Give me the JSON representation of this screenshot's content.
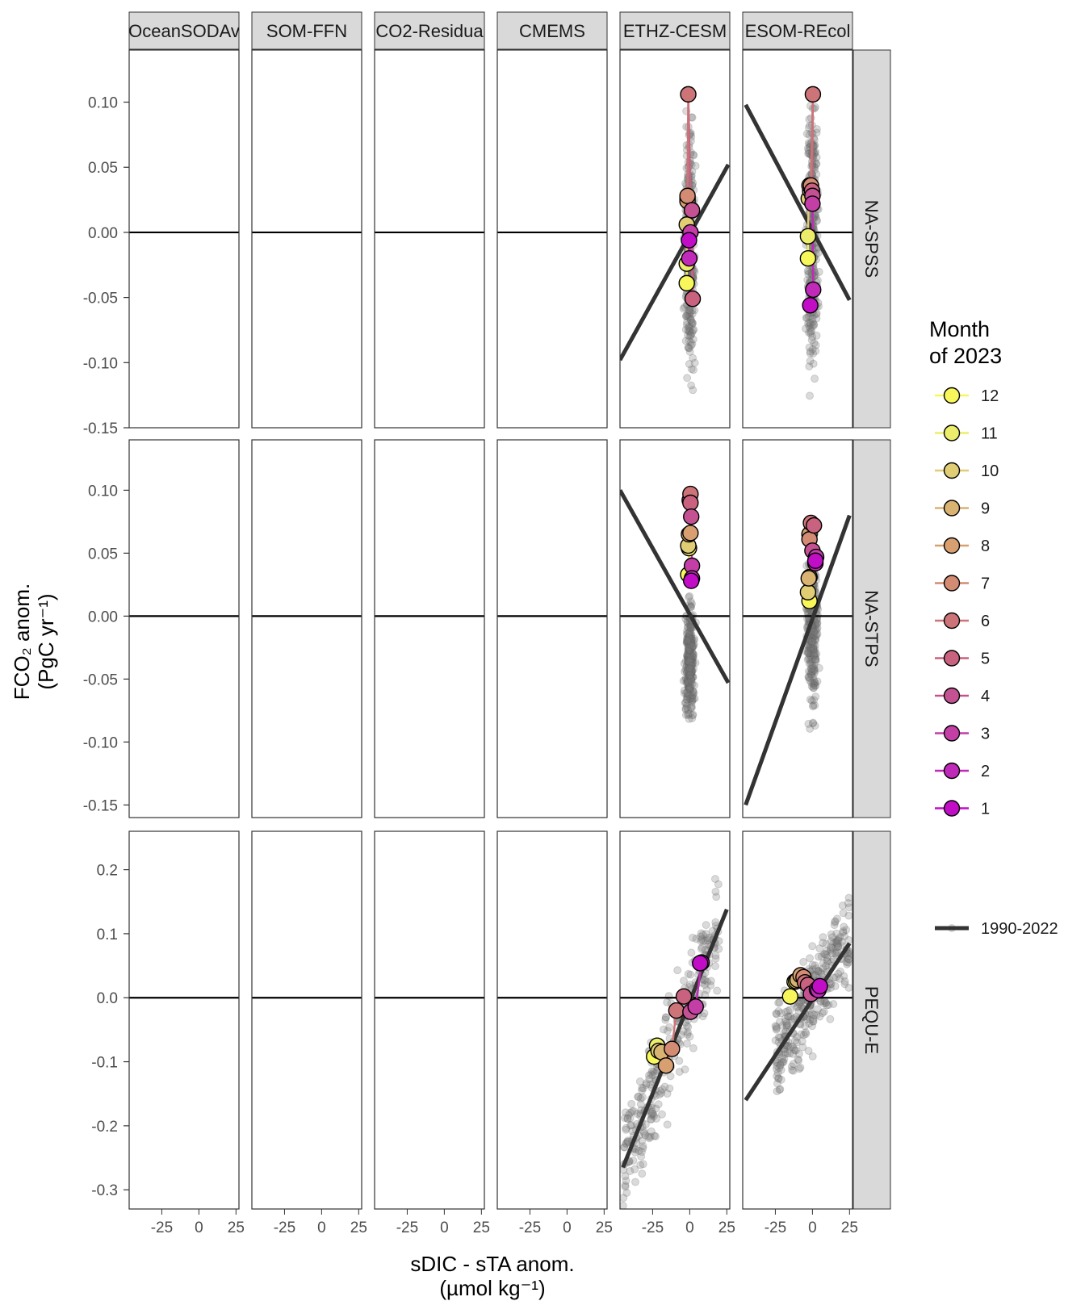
{
  "chart_data": {
    "type": "scatter",
    "facet_cols": [
      "OceanSODAv",
      "SOM-FFN",
      "CO2-Residua",
      "CMEMS",
      "ETHZ-CESM",
      "ESOM-REcol"
    ],
    "facet_rows": [
      "NA-SPSS",
      "NA-STPS",
      "PEQU-E"
    ],
    "xlabel": "sDIC - sTA anom.",
    "xlabel_unit": "(µmol kg⁻¹)",
    "ylabel": "FCO₂ anom.",
    "ylabel_unit": "(PgC yr⁻¹)",
    "x_ticks": [
      "-25",
      "0",
      "25"
    ],
    "xlim": [
      -47,
      27
    ],
    "rows_y": [
      {
        "ylim": [
          -0.15,
          0.14
        ],
        "ticks": [
          0.1,
          0.05,
          0.0,
          -0.05,
          -0.1,
          -0.15
        ],
        "tick_labels": [
          "0.10",
          "0.05",
          "0.00",
          "-0.05",
          "-0.10",
          "-0.15"
        ]
      },
      {
        "ylim": [
          -0.16,
          0.14
        ],
        "ticks": [
          0.1,
          0.05,
          0.0,
          -0.05,
          -0.1,
          -0.15
        ],
        "tick_labels": [
          "0.10",
          "0.05",
          "0.00",
          "-0.05",
          "-0.10",
          "-0.15"
        ]
      },
      {
        "ylim": [
          -0.33,
          0.26
        ],
        "ticks": [
          0.2,
          0.1,
          0.0,
          -0.1,
          -0.2,
          -0.3
        ],
        "tick_labels": [
          "0.2",
          "0.1",
          "0.0",
          "-0.1",
          "-0.2",
          "-0.3"
        ]
      }
    ],
    "zero_line": 0,
    "legend": {
      "title_line1": "Month",
      "title_line2": "of 2023",
      "months": [
        "12",
        "11",
        "10",
        "9",
        "8",
        "7",
        "6",
        "5",
        "4",
        "3",
        "2",
        "1"
      ],
      "month_colors": [
        "#f7f75c",
        "#eded6c",
        "#e0cd74",
        "#d9b371",
        "#d8a070",
        "#d38b73",
        "#cc7477",
        "#c9627f",
        "#c45292",
        "#c33fa6",
        "#c02ab8",
        "#c10ec6"
      ],
      "line_label": "1990-2022",
      "placement": "right"
    },
    "month_colors_by_month": [
      "#c10ec6",
      "#c02ab8",
      "#c33fa6",
      "#c45292",
      "#c9627f",
      "#cc7477",
      "#d38b73",
      "#d8a070",
      "#d9b371",
      "#e0cd74",
      "#eded6c",
      "#f7f75c"
    ],
    "panels": [
      {
        "row": 0,
        "col": 4,
        "fit_line": {
          "x": [
            -47,
            26
          ],
          "y": [
            -0.098,
            0.052
          ]
        },
        "background_cloud": {
          "x_center": 0,
          "x_spread": 1.6,
          "y_range": [
            -0.125,
            0.095
          ]
        },
        "month_points": [
          {
            "month": 1,
            "x": -0.5,
            "y": -0.006
          },
          {
            "month": 2,
            "x": -0.3,
            "y": -0.02
          },
          {
            "month": 3,
            "x": 0.5,
            "y": 0.0
          },
          {
            "month": 4,
            "x": 1.5,
            "y": 0.017
          },
          {
            "month": 5,
            "x": 2.0,
            "y": -0.051
          },
          {
            "month": 6,
            "x": -1.0,
            "y": 0.106
          },
          {
            "month": 7,
            "x": -1.5,
            "y": 0.028
          },
          {
            "month": 8,
            "x": -1.5,
            "y": 0.024
          },
          {
            "month": 9,
            "x": -1.5,
            "y": 0.026
          },
          {
            "month": 10,
            "x": -2.0,
            "y": 0.006
          },
          {
            "month": 11,
            "x": -2.0,
            "y": -0.024
          },
          {
            "month": 12,
            "x": -2.0,
            "y": -0.039
          }
        ]
      },
      {
        "row": 0,
        "col": 5,
        "fit_line": {
          "x": [
            -45,
            25
          ],
          "y": [
            0.098,
            -0.052
          ]
        },
        "background_cloud": {
          "x_center": 0,
          "x_spread": 1.8,
          "y_range": [
            -0.14,
            0.13
          ]
        },
        "month_points": [
          {
            "month": 1,
            "x": -1.5,
            "y": -0.056
          },
          {
            "month": 2,
            "x": 0.5,
            "y": -0.044
          },
          {
            "month": 3,
            "x": 0.0,
            "y": 0.022
          },
          {
            "month": 4,
            "x": 0.0,
            "y": 0.028
          },
          {
            "month": 5,
            "x": -0.3,
            "y": 0.032
          },
          {
            "month": 6,
            "x": 0.3,
            "y": 0.106
          },
          {
            "month": 7,
            "x": -1.0,
            "y": 0.036
          },
          {
            "month": 8,
            "x": -2.0,
            "y": 0.036
          },
          {
            "month": 9,
            "x": -1.5,
            "y": 0.032
          },
          {
            "month": 10,
            "x": -2.5,
            "y": 0.026
          },
          {
            "month": 11,
            "x": -3.0,
            "y": -0.003
          },
          {
            "month": 12,
            "x": -3.0,
            "y": -0.02
          }
        ]
      },
      {
        "row": 1,
        "col": 4,
        "fit_line": {
          "x": [
            -47,
            26
          ],
          "y": [
            0.1,
            -0.053
          ]
        },
        "background_cloud": {
          "x_center": 0,
          "x_spread": 1.5,
          "y_range": [
            -0.087,
            0.02
          ]
        },
        "month_points": [
          {
            "month": 1,
            "x": 1.0,
            "y": 0.028
          },
          {
            "month": 2,
            "x": 1.5,
            "y": 0.03
          },
          {
            "month": 3,
            "x": 1.5,
            "y": 0.04
          },
          {
            "month": 4,
            "x": 1.0,
            "y": 0.079
          },
          {
            "month": 5,
            "x": 0.5,
            "y": 0.09
          },
          {
            "month": 6,
            "x": 0.5,
            "y": 0.097
          },
          {
            "month": 7,
            "x": 0.0,
            "y": 0.092
          },
          {
            "month": 8,
            "x": 0.5,
            "y": 0.066
          },
          {
            "month": 9,
            "x": -0.5,
            "y": 0.065
          },
          {
            "month": 10,
            "x": -1.0,
            "y": 0.056
          },
          {
            "month": 11,
            "x": -0.5,
            "y": 0.054
          },
          {
            "month": 12,
            "x": -1.0,
            "y": 0.033
          }
        ]
      },
      {
        "row": 1,
        "col": 5,
        "fit_line": {
          "x": [
            -45,
            25
          ],
          "y": [
            -0.15,
            0.08
          ]
        },
        "background_cloud": {
          "x_center": 0,
          "x_spread": 1.8,
          "y_range": [
            -0.09,
            0.08
          ]
        },
        "month_points": [
          {
            "month": 1,
            "x": 2.0,
            "y": 0.044
          },
          {
            "month": 2,
            "x": 2.0,
            "y": 0.042
          },
          {
            "month": 3,
            "x": 2.5,
            "y": 0.047
          },
          {
            "month": 4,
            "x": 0.0,
            "y": 0.052
          },
          {
            "month": 5,
            "x": 1.0,
            "y": 0.072
          },
          {
            "month": 6,
            "x": -1.0,
            "y": 0.074
          },
          {
            "month": 7,
            "x": -2.0,
            "y": 0.061
          },
          {
            "month": 8,
            "x": -2.0,
            "y": 0.065
          },
          {
            "month": 9,
            "x": -2.5,
            "y": 0.03
          },
          {
            "month": 10,
            "x": -3.0,
            "y": 0.019
          },
          {
            "month": 11,
            "x": -2.0,
            "y": 0.031
          },
          {
            "month": 12,
            "x": -2.0,
            "y": 0.012
          }
        ]
      },
      {
        "row": 2,
        "col": 4,
        "fit_line": {
          "x": [
            -45,
            25
          ],
          "y": [
            -0.265,
            0.138
          ]
        },
        "background_cloud": {
          "slope": 0.0058,
          "intercept": -0.003,
          "x_range": [
            -45,
            20
          ],
          "resid": 0.04
        },
        "month_points": [
          {
            "month": 1,
            "x": 7.0,
            "y": 0.054
          },
          {
            "month": 2,
            "x": 8.0,
            "y": 0.055
          },
          {
            "month": 3,
            "x": 4.0,
            "y": -0.014
          },
          {
            "month": 4,
            "x": 0.5,
            "y": -0.022
          },
          {
            "month": 5,
            "x": -4.0,
            "y": 0.002
          },
          {
            "month": 6,
            "x": -9.0,
            "y": -0.02
          },
          {
            "month": 7,
            "x": -12.0,
            "y": -0.08
          },
          {
            "month": 8,
            "x": -16.0,
            "y": -0.106
          },
          {
            "month": 9,
            "x": -19.0,
            "y": -0.085
          },
          {
            "month": 10,
            "x": -21.0,
            "y": -0.083
          },
          {
            "month": 11,
            "x": -22.0,
            "y": -0.075
          },
          {
            "month": 12,
            "x": -24.0,
            "y": -0.092
          }
        ]
      },
      {
        "row": 2,
        "col": 5,
        "fit_line": {
          "x": [
            -45,
            25
          ],
          "y": [
            -0.16,
            0.085
          ]
        },
        "background_cloud": {
          "slope": 0.0035,
          "intercept": 0.0,
          "x_range": [
            -25,
            25
          ],
          "resid": 0.035
        },
        "month_points": [
          {
            "month": 1,
            "x": 5.0,
            "y": 0.018
          },
          {
            "month": 2,
            "x": 4.0,
            "y": 0.012
          },
          {
            "month": 3,
            "x": 3.0,
            "y": 0.013
          },
          {
            "month": 4,
            "x": -1.0,
            "y": 0.006
          },
          {
            "month": 5,
            "x": -3.0,
            "y": 0.02
          },
          {
            "month": 6,
            "x": -5.0,
            "y": 0.024
          },
          {
            "month": 7,
            "x": -6.0,
            "y": 0.032
          },
          {
            "month": 8,
            "x": -8.0,
            "y": 0.035
          },
          {
            "month": 9,
            "x": -10.0,
            "y": 0.028
          },
          {
            "month": 10,
            "x": -11.0,
            "y": 0.026
          },
          {
            "month": 11,
            "x": -12.0,
            "y": 0.025
          },
          {
            "month": 12,
            "x": -15.0,
            "y": 0.002
          }
        ]
      }
    ]
  }
}
